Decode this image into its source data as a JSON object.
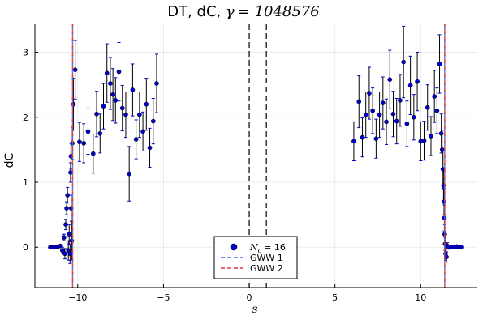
{
  "chart_data": {
    "type": "scatter",
    "title_prefix": "DT, dC, ",
    "title_gamma_symbol": "γ",
    "title_gamma_value": "= 1048576",
    "xlabel": "s",
    "ylabel": "dC",
    "xlim": [
      -12.5,
      13.3
    ],
    "ylim": [
      -0.62,
      3.43
    ],
    "xticks": [
      -10,
      -5,
      0,
      5,
      10
    ],
    "xtick_labels": [
      "−10",
      "−5",
      "0",
      "5",
      "10"
    ],
    "yticks": [
      0,
      1,
      2,
      3
    ],
    "ytick_labels": [
      "0",
      "1",
      "2",
      "3"
    ],
    "grid": true,
    "legend_position": "bottom-center",
    "colors": {
      "points": "#0000cd",
      "errorbars": "#000000",
      "gww1": "#4a6cf0",
      "gww2": "#e23b3b",
      "center_lines": "#000000"
    },
    "vlines_center": [
      0,
      1
    ],
    "gww1_x": [
      -10.3,
      11.4
    ],
    "gww2_x": [
      -10.3,
      11.4
    ],
    "series": [
      {
        "name_symbol": "N",
        "name_subscript": "c",
        "name_value": "= 16",
        "type": "scatter",
        "points": [
          {
            "x": -11.6,
            "y": 0.0,
            "err": 0.01
          },
          {
            "x": -11.45,
            "y": 0.0,
            "err": 0.01
          },
          {
            "x": -11.3,
            "y": 0.005,
            "err": 0.01
          },
          {
            "x": -11.15,
            "y": 0.01,
            "err": 0.02
          },
          {
            "x": -11.0,
            "y": 0.02,
            "err": 0.02
          },
          {
            "x": -10.9,
            "y": -0.05,
            "err": 0.05
          },
          {
            "x": -10.8,
            "y": 0.15,
            "err": 0.05
          },
          {
            "x": -10.75,
            "y": -0.1,
            "err": 0.08
          },
          {
            "x": -10.7,
            "y": 0.35,
            "err": 0.08
          },
          {
            "x": -10.65,
            "y": 0.6,
            "err": 0.1
          },
          {
            "x": -10.6,
            "y": 0.8,
            "err": 0.12
          },
          {
            "x": -10.55,
            "y": -0.05,
            "err": 0.15
          },
          {
            "x": -10.5,
            "y": 0.2,
            "err": 0.15
          },
          {
            "x": -10.45,
            "y": -0.1,
            "err": 0.15
          },
          {
            "x": -10.42,
            "y": 1.15,
            "err": 0.15
          },
          {
            "x": -10.4,
            "y": 1.4,
            "err": 0.2
          },
          {
            "x": -10.38,
            "y": 0.6,
            "err": 0.2
          },
          {
            "x": -10.35,
            "y": 0.1,
            "err": 0.3
          },
          {
            "x": -10.32,
            "y": 1.6,
            "err": 0.25
          },
          {
            "x": -10.25,
            "y": 2.2,
            "err": 0.4
          },
          {
            "x": -10.15,
            "y": 2.73,
            "err": 0.45
          },
          {
            "x": -9.9,
            "y": 1.62,
            "err": 0.3
          },
          {
            "x": -9.65,
            "y": 1.6,
            "err": 0.3
          },
          {
            "x": -9.4,
            "y": 1.78,
            "err": 0.35
          },
          {
            "x": -9.1,
            "y": 1.44,
            "err": 0.3
          },
          {
            "x": -8.9,
            "y": 2.05,
            "err": 0.35
          },
          {
            "x": -8.7,
            "y": 1.75,
            "err": 0.3
          },
          {
            "x": -8.5,
            "y": 2.17,
            "err": 0.35
          },
          {
            "x": -8.3,
            "y": 2.68,
            "err": 0.45
          },
          {
            "x": -8.1,
            "y": 2.52,
            "err": 0.4
          },
          {
            "x": -7.95,
            "y": 2.35,
            "err": 0.4
          },
          {
            "x": -7.8,
            "y": 2.26,
            "err": 0.35
          },
          {
            "x": -7.6,
            "y": 2.7,
            "err": 0.45
          },
          {
            "x": -7.4,
            "y": 2.14,
            "err": 0.35
          },
          {
            "x": -7.2,
            "y": 2.04,
            "err": 0.35
          },
          {
            "x": -7.0,
            "y": 1.13,
            "err": 0.42
          },
          {
            "x": -6.8,
            "y": 2.42,
            "err": 0.4
          },
          {
            "x": -6.6,
            "y": 1.66,
            "err": 0.3
          },
          {
            "x": -6.4,
            "y": 2.04,
            "err": 0.35
          },
          {
            "x": -6.2,
            "y": 1.78,
            "err": 0.3
          },
          {
            "x": -6.0,
            "y": 2.2,
            "err": 0.4
          },
          {
            "x": -5.8,
            "y": 1.53,
            "err": 0.3
          },
          {
            "x": -5.6,
            "y": 1.94,
            "err": 0.35
          },
          {
            "x": -5.4,
            "y": 2.52,
            "err": 0.45
          },
          {
            "x": 6.1,
            "y": 1.63,
            "err": 0.3
          },
          {
            "x": 6.4,
            "y": 2.24,
            "err": 0.4
          },
          {
            "x": 6.6,
            "y": 1.69,
            "err": 0.3
          },
          {
            "x": 6.8,
            "y": 2.04,
            "err": 0.35
          },
          {
            "x": 7.0,
            "y": 2.37,
            "err": 0.4
          },
          {
            "x": 7.2,
            "y": 2.1,
            "err": 0.35
          },
          {
            "x": 7.4,
            "y": 1.67,
            "err": 0.3
          },
          {
            "x": 7.6,
            "y": 2.04,
            "err": 0.35
          },
          {
            "x": 7.8,
            "y": 2.22,
            "err": 0.4
          },
          {
            "x": 8.0,
            "y": 1.93,
            "err": 0.35
          },
          {
            "x": 8.2,
            "y": 2.58,
            "err": 0.45
          },
          {
            "x": 8.4,
            "y": 2.05,
            "err": 0.35
          },
          {
            "x": 8.6,
            "y": 1.94,
            "err": 0.35
          },
          {
            "x": 8.8,
            "y": 2.26,
            "err": 0.4
          },
          {
            "x": 9.0,
            "y": 2.85,
            "err": 0.55
          },
          {
            "x": 9.2,
            "y": 1.9,
            "err": 0.35
          },
          {
            "x": 9.4,
            "y": 2.49,
            "err": 0.45
          },
          {
            "x": 9.6,
            "y": 2.0,
            "err": 0.35
          },
          {
            "x": 9.8,
            "y": 2.55,
            "err": 0.45
          },
          {
            "x": 10.0,
            "y": 1.63,
            "err": 0.3
          },
          {
            "x": 10.2,
            "y": 1.64,
            "err": 0.3
          },
          {
            "x": 10.4,
            "y": 2.15,
            "err": 0.35
          },
          {
            "x": 10.6,
            "y": 1.71,
            "err": 0.3
          },
          {
            "x": 10.8,
            "y": 2.32,
            "err": 0.4
          },
          {
            "x": 10.95,
            "y": 2.1,
            "err": 0.35
          },
          {
            "x": 11.1,
            "y": 2.82,
            "err": 0.45
          },
          {
            "x": 11.2,
            "y": 1.75,
            "err": 0.3
          },
          {
            "x": 11.25,
            "y": 1.5,
            "err": 0.3
          },
          {
            "x": 11.3,
            "y": 1.2,
            "err": 0.3
          },
          {
            "x": 11.33,
            "y": 0.95,
            "err": 0.25
          },
          {
            "x": 11.36,
            "y": 0.7,
            "err": 0.2
          },
          {
            "x": 11.38,
            "y": 0.45,
            "err": 0.2
          },
          {
            "x": 11.4,
            "y": 0.2,
            "err": 0.15
          },
          {
            "x": 11.42,
            "y": 0.05,
            "err": 0.1
          },
          {
            "x": 11.45,
            "y": -0.1,
            "err": 0.1
          },
          {
            "x": 11.5,
            "y": -0.15,
            "err": 0.08
          },
          {
            "x": 11.55,
            "y": 0.02,
            "err": 0.05
          },
          {
            "x": 11.65,
            "y": 0.0,
            "err": 0.03
          },
          {
            "x": 11.8,
            "y": 0.0,
            "err": 0.02
          },
          {
            "x": 11.95,
            "y": 0.0,
            "err": 0.01
          },
          {
            "x": 12.1,
            "y": 0.01,
            "err": 0.01
          },
          {
            "x": 12.25,
            "y": 0.0,
            "err": 0.01
          },
          {
            "x": 12.4,
            "y": 0.0,
            "err": 0.01
          }
        ]
      },
      {
        "name": "GWW 1",
        "type": "vline"
      },
      {
        "name": "GWW 2",
        "type": "vline"
      }
    ]
  }
}
